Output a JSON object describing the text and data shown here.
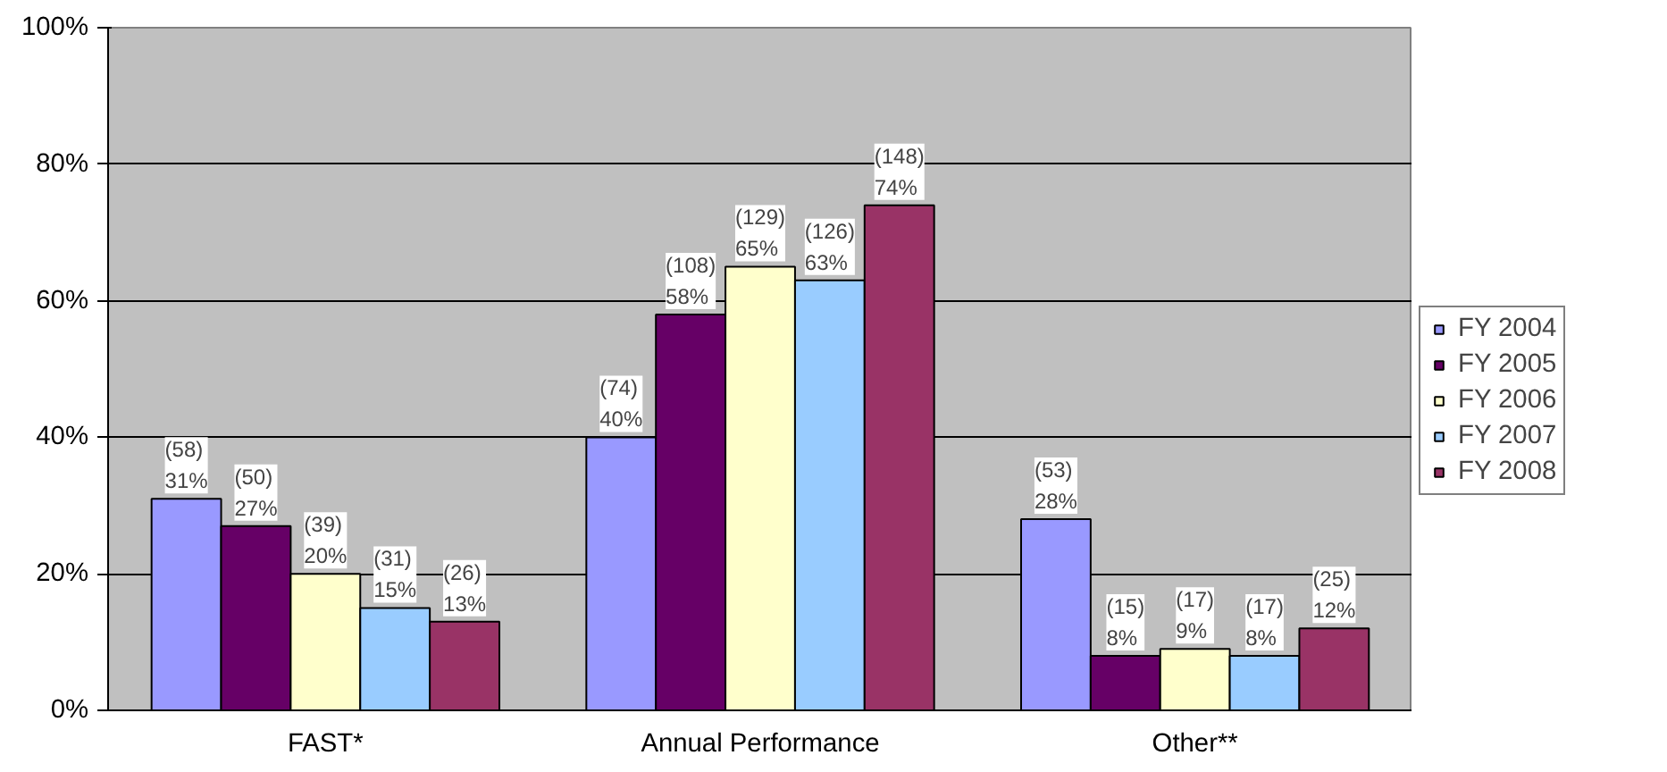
{
  "chart_data": {
    "type": "bar",
    "categories": [
      "FAST*",
      "Annual Performance",
      "Other**"
    ],
    "series": [
      {
        "name": "FY 2004",
        "color": "#9999ff",
        "values": [
          31,
          40,
          28
        ],
        "value_labels": [
          "(58)\n31%",
          "(74)\n40%",
          "(53)\n28%"
        ]
      },
      {
        "name": "FY 2005",
        "color": "#660066",
        "values": [
          27,
          58,
          8
        ],
        "value_labels": [
          "(50)\n27%",
          "(108)\n58%",
          "(15)\n8%"
        ]
      },
      {
        "name": "FY 2006",
        "color": "#ffffcc",
        "values": [
          20,
          65,
          9
        ],
        "value_labels": [
          "(39)\n20%",
          "(129)\n65%",
          "(17)\n9%"
        ]
      },
      {
        "name": "FY 2007",
        "color": "#99ccff",
        "values": [
          15,
          63,
          8
        ],
        "value_labels": [
          "(31)\n15%",
          "(126)\n63%",
          "(17)\n8%"
        ]
      },
      {
        "name": "FY 2008",
        "color": "#993366",
        "values": [
          13,
          74,
          12
        ],
        "value_labels": [
          "(26)\n13%",
          "(148)\n74%",
          "(25)\n12%"
        ]
      }
    ],
    "ylim": [
      0,
      100
    ],
    "yticks": [
      {
        "value": 0,
        "label": "0%"
      },
      {
        "value": 20,
        "label": "20%"
      },
      {
        "value": 40,
        "label": "40%"
      },
      {
        "value": 60,
        "label": "60%"
      },
      {
        "value": 80,
        "label": "80%"
      },
      {
        "value": 100,
        "label": "100%"
      }
    ],
    "grid": "y",
    "legend": "right"
  }
}
